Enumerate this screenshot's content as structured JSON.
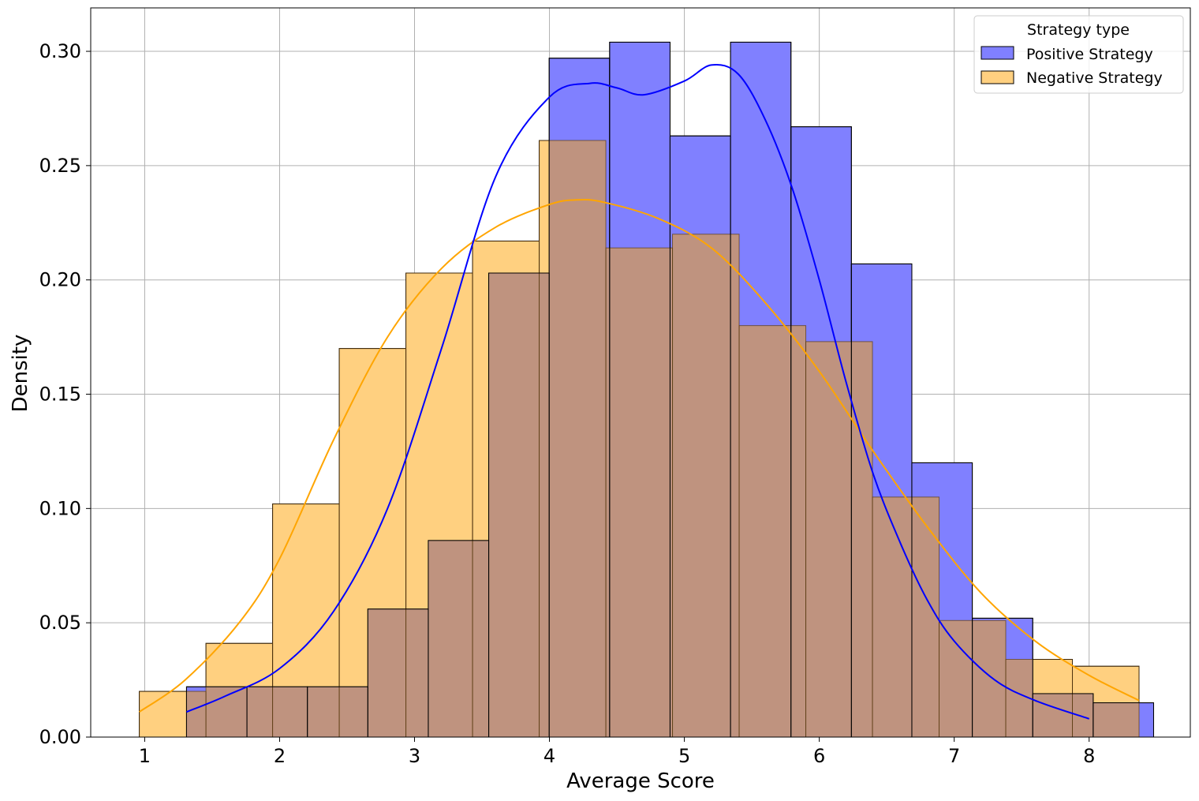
{
  "chart_data": {
    "type": "histogram",
    "title": "",
    "xlabel": "Average Score",
    "ylabel": "Density",
    "xlim": [
      0.6,
      8.75
    ],
    "ylim": [
      0.0,
      0.319
    ],
    "x_ticks": [
      1,
      2,
      3,
      4,
      5,
      6,
      7,
      8
    ],
    "x_tick_labels": [
      "1",
      "2",
      "3",
      "4",
      "5",
      "6",
      "7",
      "8"
    ],
    "y_ticks": [
      0.0,
      0.05,
      0.1,
      0.15,
      0.2,
      0.25,
      0.3
    ],
    "y_tick_labels": [
      "0.00",
      "0.05",
      "0.10",
      "0.15",
      "0.20",
      "0.25",
      "0.30"
    ],
    "grid": true,
    "legend": {
      "title": "Strategy type",
      "position": "top-right",
      "entries": [
        "Positive Strategy",
        "Negative Strategy"
      ]
    },
    "colors": {
      "positive_fill": "#8080ff",
      "positive_line": "#0000ff",
      "negative_fill": "#ffd080",
      "negative_line": "#ffa500",
      "overlap_fill": "#bf937f",
      "edge": "#000000",
      "grid": "#b0b0b0"
    },
    "series": [
      {
        "name": "Positive Strategy",
        "bin_start": 1.31,
        "bin_width": 0.448,
        "values": [
          0.022,
          0.022,
          0.022,
          0.056,
          0.086,
          0.203,
          0.297,
          0.304,
          0.263,
          0.304,
          0.267,
          0.207,
          0.12,
          0.052,
          0.019,
          0.015
        ],
        "kde": {
          "x": [
            1.31,
            1.6,
            2.0,
            2.4,
            2.8,
            3.2,
            3.6,
            4.0,
            4.3,
            4.5,
            4.7,
            5.0,
            5.2,
            5.4,
            5.6,
            5.8,
            6.0,
            6.2,
            6.4,
            6.6,
            6.8,
            7.0,
            7.3,
            7.6,
            8.0
          ],
          "y": [
            0.011,
            0.018,
            0.03,
            0.055,
            0.1,
            0.17,
            0.245,
            0.28,
            0.286,
            0.284,
            0.281,
            0.287,
            0.294,
            0.29,
            0.27,
            0.24,
            0.2,
            0.155,
            0.115,
            0.085,
            0.06,
            0.042,
            0.025,
            0.016,
            0.008
          ]
        }
      },
      {
        "name": "Negative Strategy",
        "bin_start": 0.96,
        "bin_width": 0.494,
        "values": [
          0.02,
          0.041,
          0.102,
          0.17,
          0.203,
          0.217,
          0.261,
          0.214,
          0.22,
          0.18,
          0.173,
          0.105,
          0.051,
          0.034,
          0.031
        ],
        "kde": {
          "x": [
            0.96,
            1.3,
            1.7,
            2.0,
            2.4,
            2.8,
            3.2,
            3.6,
            4.0,
            4.2,
            4.4,
            4.8,
            5.2,
            5.6,
            6.0,
            6.4,
            6.8,
            7.2,
            7.6,
            8.0,
            8.37
          ],
          "y": [
            0.011,
            0.025,
            0.05,
            0.078,
            0.13,
            0.175,
            0.205,
            0.223,
            0.233,
            0.235,
            0.234,
            0.227,
            0.214,
            0.19,
            0.16,
            0.125,
            0.092,
            0.063,
            0.042,
            0.027,
            0.016
          ]
        }
      }
    ]
  }
}
